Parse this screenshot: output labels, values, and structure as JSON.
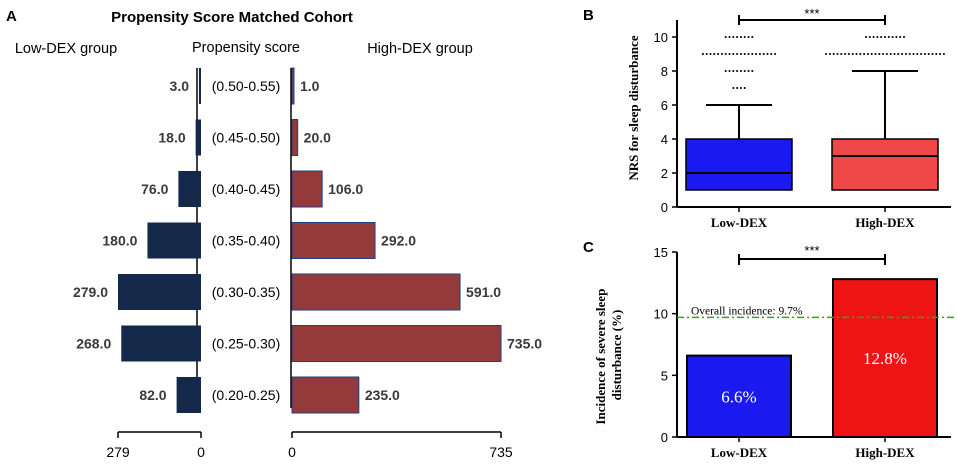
{
  "colors": {
    "low_bar": "#14284a",
    "high_bar": "#943a3a",
    "box_low": "#1a1af0",
    "box_high": "#f04848",
    "bar_low": "#1a1af0",
    "bar_high": "#ee1414",
    "ref_line": "#29a829"
  },
  "chart_data": [
    {
      "panel": "A",
      "type": "bar",
      "orientation": "horizontal-pyramid",
      "title": "Propensity Score Matched Cohort",
      "left_label": "Low-DEX group",
      "center_label": "Propensity score",
      "right_label": "High-DEX group",
      "categories": [
        "(0.50-0.55)",
        "(0.45-0.50)",
        "(0.40-0.45)",
        "(0.35-0.40)",
        "(0.30-0.35)",
        "(0.25-0.30)",
        "(0.20-0.25)"
      ],
      "series": [
        {
          "name": "Low-DEX group",
          "values": [
            3.0,
            18.0,
            76.0,
            180.0,
            279.0,
            268.0,
            82.0
          ],
          "labels": [
            "3.0",
            "18.0",
            "76.0",
            "180.0",
            "279.0",
            "268.0",
            "82.0"
          ]
        },
        {
          "name": "High-DEX group",
          "values": [
            1.0,
            20.0,
            106.0,
            292.0,
            591.0,
            735.0,
            235.0
          ],
          "labels": [
            "1.0",
            "20.0",
            "106.0",
            "292.0",
            "591.0",
            "735.0",
            "235.0"
          ]
        }
      ],
      "left_axis": {
        "range": [
          0,
          279
        ],
        "ticks": [
          "279",
          "0"
        ]
      },
      "right_axis": {
        "range": [
          0,
          735
        ],
        "ticks": [
          "0",
          "735"
        ]
      }
    },
    {
      "panel": "B",
      "type": "box",
      "ylabel": "NRS for sleep disturbance",
      "ylim": [
        0,
        11
      ],
      "yticks": [
        "0",
        "2",
        "4",
        "6",
        "8",
        "10"
      ],
      "categories": [
        "Low-DEX",
        "High-DEX"
      ],
      "boxes": [
        {
          "name": "Low-DEX",
          "min": 1,
          "q1": 1,
          "median": 2,
          "q3": 4,
          "whisker_high": 6,
          "outliers": [
            7,
            8,
            9,
            10
          ]
        },
        {
          "name": "High-DEX",
          "min": 1,
          "q1": 1,
          "median": 3,
          "q3": 4,
          "whisker_high": 8,
          "outliers": [
            9,
            10
          ]
        }
      ],
      "significance": "***"
    },
    {
      "panel": "C",
      "type": "bar",
      "ylabel": "Incidence of severe sleep disturbance (%)",
      "ylim": [
        0,
        15
      ],
      "yticks": [
        "0",
        "5",
        "10",
        "15"
      ],
      "categories": [
        "Low-DEX",
        "High-DEX"
      ],
      "values": [
        6.6,
        12.8
      ],
      "value_labels": [
        "6.6%",
        "12.8%"
      ],
      "reference_line": {
        "value": 9.7,
        "label": "Overall incidence: 9.7%"
      },
      "significance": "***"
    }
  ]
}
